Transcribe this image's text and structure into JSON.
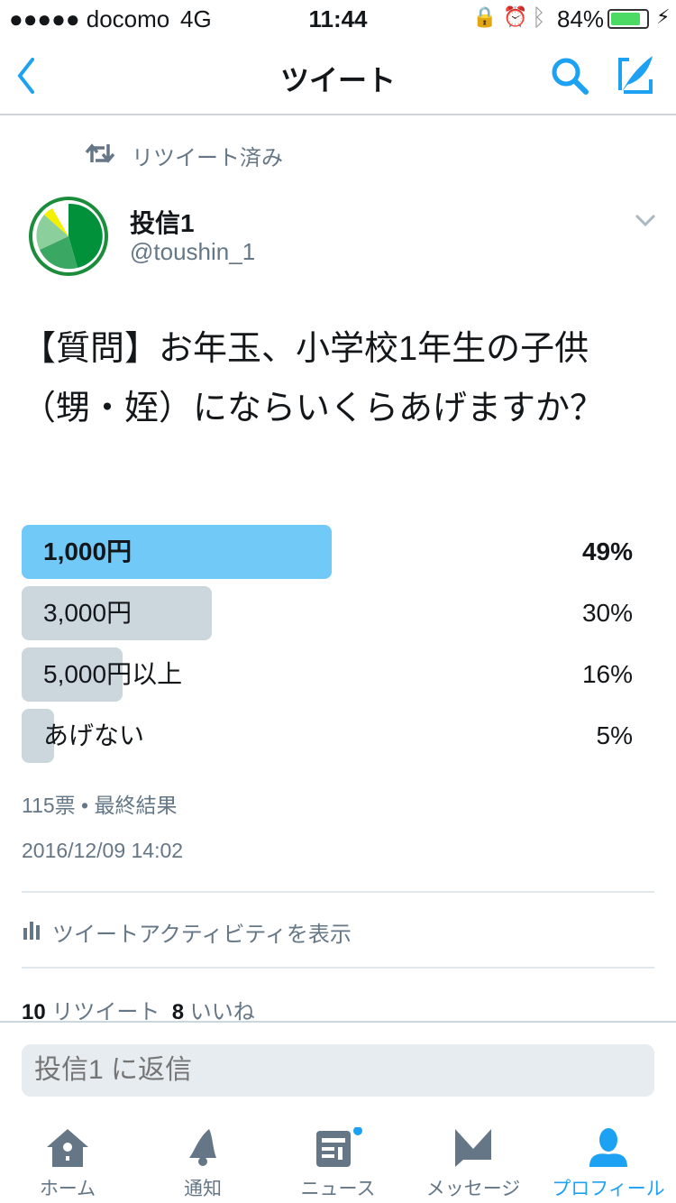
{
  "status_bar": {
    "carrier": "●●●●● docomo",
    "network": "4G",
    "time": "11:44",
    "battery": "84%",
    "battery_level": 0.84
  },
  "nav": {
    "title": "ツイート",
    "back_icon": "chevron-left-icon",
    "search_icon": "search-icon",
    "compose_icon": "compose-icon"
  },
  "retweet_context": {
    "label": "リツイート済み"
  },
  "author": {
    "name": "投信1",
    "handle": "@toushin_1"
  },
  "tweet": {
    "text": "【質問】お年玉、小学校1年生の子供（甥・姪）にならいくらあげますか？"
  },
  "poll": {
    "options": [
      {
        "label": "1,000円",
        "percent": 49,
        "leader": true
      },
      {
        "label": "3,000円",
        "percent": 30
      },
      {
        "label": "5,000円以上",
        "percent": 16
      },
      {
        "label": "あげない",
        "percent": 5
      }
    ],
    "summary": "115票 • 最終結果",
    "colors": {
      "leader": "#71c9f8",
      "other": "#ccd6dd"
    }
  },
  "timestamp": "2016/12/09 14:02",
  "activity_link": "ツイートアクティビティを表示",
  "stats": {
    "retweets": "10",
    "retweets_label": "リツイート",
    "likes": "8",
    "likes_label": "いいね"
  },
  "reply": {
    "placeholder": "投信1 に返信"
  },
  "tabs": [
    {
      "label": "ホーム"
    },
    {
      "label": "通知"
    },
    {
      "label": "ニュース"
    },
    {
      "label": "メッセージ"
    },
    {
      "label": "プロフィール",
      "active": true
    }
  ],
  "colors": {
    "accent": "#1da1f2",
    "secondary": "#657786"
  }
}
